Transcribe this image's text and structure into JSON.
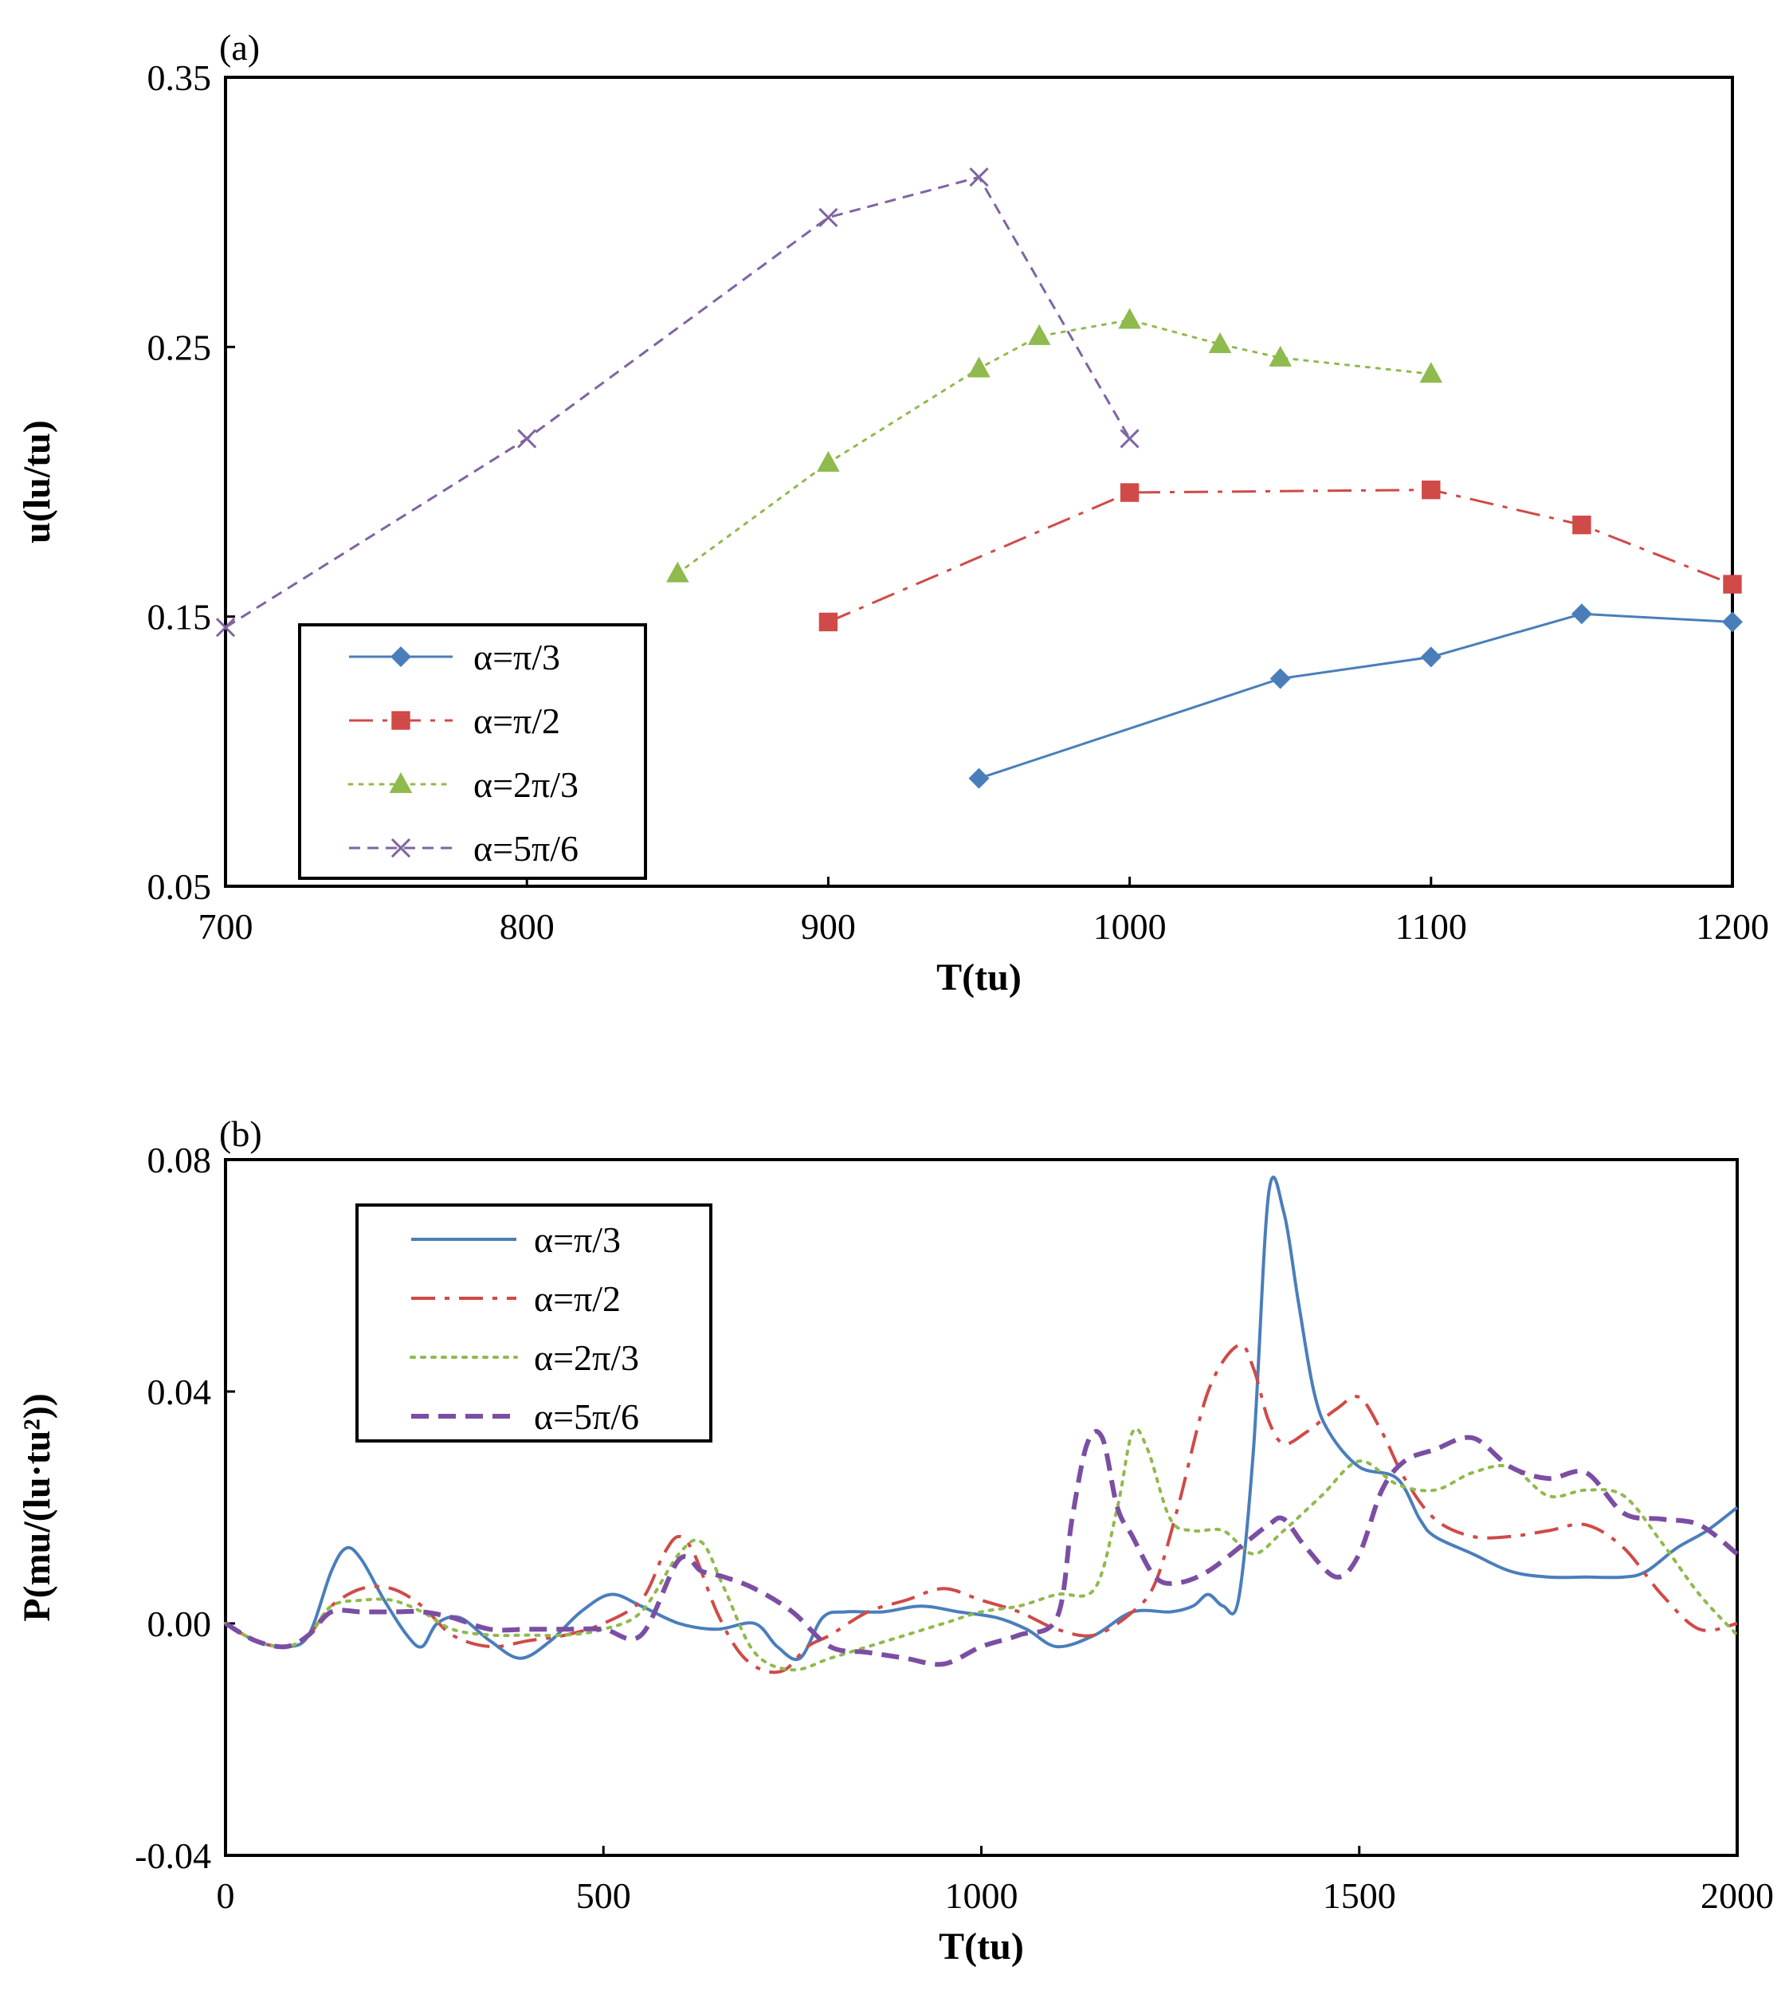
{
  "chart_data": [
    {
      "panel_label": "(a)",
      "type": "line",
      "xlabel": "T(tu)",
      "ylabel": "u(lu/tu)",
      "xlim": [
        700,
        1200
      ],
      "ylim": [
        0.05,
        0.35
      ],
      "xticks": [
        "700",
        "800",
        "900",
        "1000",
        "1100",
        "1200"
      ],
      "yticks": [
        "0.05",
        "0.15",
        "0.25",
        "0.35"
      ],
      "grid": false,
      "legend_position": "bottom-left",
      "series": [
        {
          "name": "α=π/3",
          "color": "#4a7ebb",
          "marker": "diamond",
          "dash": "solid",
          "x": [
            950,
            1050,
            1100,
            1150,
            1200
          ],
          "y": [
            0.09,
            0.127,
            0.135,
            0.151,
            0.148
          ]
        },
        {
          "name": "α=π/2",
          "color": "#d04a47",
          "marker": "square",
          "dash": "dashdot",
          "x": [
            900,
            1000,
            1100,
            1150,
            1200
          ],
          "y": [
            0.148,
            0.196,
            0.197,
            0.184,
            0.162
          ]
        },
        {
          "name": "α=2π/3",
          "color": "#8fba4d",
          "marker": "triangle",
          "dash": "dotted",
          "x": [
            850,
            900,
            950,
            970,
            1000,
            1030,
            1050,
            1100
          ],
          "y": [
            0.166,
            0.207,
            0.242,
            0.254,
            0.26,
            0.251,
            0.246,
            0.24
          ]
        },
        {
          "name": "α=5π/6",
          "color": "#8064a2",
          "marker": "x",
          "dash": "dashed",
          "x": [
            700,
            800,
            900,
            950,
            1000
          ],
          "y": [
            0.146,
            0.216,
            0.298,
            0.313,
            0.216
          ]
        }
      ]
    },
    {
      "panel_label": "(b)",
      "type": "line",
      "xlabel": "T(tu)",
      "ylabel": "P(mu/(lu·tu²))",
      "xlim": [
        0,
        2000
      ],
      "ylim": [
        -0.04,
        0.08
      ],
      "xticks": [
        "0",
        "500",
        "1000",
        "1500",
        "2000"
      ],
      "yticks": [
        "-0.04",
        "0.00",
        "0.04",
        "0.08"
      ],
      "grid": false,
      "legend_position": "top-left",
      "series": [
        {
          "name": "α=π/3",
          "color": "#4a7ebb",
          "dash": "solid",
          "x": [
            0,
            40,
            80,
            110,
            140,
            160,
            180,
            210,
            240,
            260,
            280,
            310,
            350,
            390,
            430,
            470,
            510,
            550,
            600,
            650,
            700,
            730,
            760,
            790,
            820,
            870,
            920,
            970,
            1020,
            1060,
            1100,
            1150,
            1200,
            1250,
            1280,
            1300,
            1320,
            1340,
            1360,
            1380,
            1400,
            1420,
            1440,
            1460,
            1500,
            1550,
            1580,
            1600,
            1650,
            1700,
            1750,
            1800,
            1850,
            1880,
            1920,
            1960,
            2000
          ],
          "y": [
            0.0,
            -0.003,
            -0.004,
            -0.002,
            0.009,
            0.013,
            0.011,
            0.004,
            -0.002,
            -0.004,
            0.0,
            0.001,
            -0.003,
            -0.006,
            -0.003,
            0.002,
            0.005,
            0.003,
            0.0,
            -0.001,
            0.0,
            -0.004,
            -0.006,
            0.001,
            0.002,
            0.002,
            0.003,
            0.002,
            0.001,
            -0.001,
            -0.004,
            -0.002,
            0.002,
            0.002,
            0.003,
            0.005,
            0.003,
            0.004,
            0.03,
            0.074,
            0.071,
            0.055,
            0.04,
            0.033,
            0.027,
            0.025,
            0.018,
            0.015,
            0.012,
            0.009,
            0.008,
            0.008,
            0.008,
            0.009,
            0.013,
            0.016,
            0.02
          ]
        },
        {
          "name": "α=π/2",
          "color": "#d04a47",
          "dash": "dashdot",
          "x": [
            0,
            40,
            80,
            110,
            140,
            180,
            220,
            260,
            300,
            350,
            400,
            450,
            500,
            550,
            580,
            600,
            620,
            650,
            680,
            710,
            740,
            770,
            800,
            850,
            900,
            950,
            1000,
            1050,
            1100,
            1150,
            1200,
            1230,
            1260,
            1300,
            1340,
            1360,
            1380,
            1400,
            1430,
            1470,
            1500,
            1530,
            1560,
            1600,
            1650,
            1700,
            1750,
            1800,
            1850,
            1900,
            1950,
            2000
          ],
          "y": [
            0.0,
            -0.003,
            -0.004,
            -0.002,
            0.003,
            0.006,
            0.006,
            0.003,
            -0.002,
            -0.004,
            -0.003,
            -0.002,
            0.0,
            0.004,
            0.012,
            0.015,
            0.012,
            0.002,
            -0.005,
            -0.008,
            -0.008,
            -0.004,
            -0.002,
            0.002,
            0.004,
            0.006,
            0.004,
            0.002,
            -0.001,
            -0.002,
            0.002,
            0.007,
            0.02,
            0.04,
            0.048,
            0.044,
            0.035,
            0.031,
            0.033,
            0.037,
            0.039,
            0.033,
            0.025,
            0.018,
            0.015,
            0.015,
            0.016,
            0.017,
            0.013,
            0.005,
            -0.001,
            0.0
          ]
        },
        {
          "name": "α=2π/3",
          "color": "#8fba4d",
          "dash": "dotted",
          "x": [
            0,
            40,
            80,
            110,
            140,
            180,
            220,
            260,
            300,
            350,
            400,
            450,
            500,
            550,
            600,
            630,
            660,
            700,
            750,
            800,
            850,
            900,
            950,
            1000,
            1050,
            1100,
            1150,
            1180,
            1200,
            1220,
            1250,
            1280,
            1320,
            1360,
            1400,
            1450,
            1500,
            1550,
            1600,
            1650,
            1700,
            1750,
            1800,
            1850,
            1900,
            1950,
            2000
          ],
          "y": [
            0.0,
            -0.003,
            -0.004,
            -0.002,
            0.003,
            0.004,
            0.004,
            0.002,
            -0.001,
            -0.002,
            -0.002,
            -0.002,
            -0.001,
            0.002,
            0.012,
            0.014,
            0.006,
            -0.005,
            -0.008,
            -0.006,
            -0.004,
            -0.002,
            0.0,
            0.002,
            0.003,
            0.005,
            0.006,
            0.02,
            0.033,
            0.03,
            0.018,
            0.016,
            0.016,
            0.012,
            0.016,
            0.022,
            0.028,
            0.024,
            0.023,
            0.026,
            0.027,
            0.022,
            0.023,
            0.022,
            0.014,
            0.005,
            -0.002
          ]
        },
        {
          "name": "α=5π/6",
          "color": "#7b4ea3",
          "dash": "longdash",
          "x": [
            0,
            40,
            80,
            110,
            140,
            180,
            220,
            260,
            300,
            350,
            400,
            450,
            500,
            550,
            600,
            630,
            660,
            700,
            750,
            800,
            850,
            900,
            950,
            1000,
            1050,
            1100,
            1120,
            1140,
            1160,
            1180,
            1200,
            1230,
            1260,
            1300,
            1350,
            1380,
            1400,
            1430,
            1470,
            1500,
            1530,
            1560,
            1600,
            1650,
            1700,
            1750,
            1800,
            1850,
            1900,
            1950,
            2000
          ],
          "y": [
            0.0,
            -0.003,
            -0.004,
            -0.002,
            0.002,
            0.002,
            0.002,
            0.002,
            0.001,
            -0.001,
            -0.001,
            -0.001,
            -0.001,
            -0.002,
            0.011,
            0.009,
            0.008,
            0.006,
            0.002,
            -0.004,
            -0.005,
            -0.006,
            -0.007,
            -0.004,
            -0.002,
            0.001,
            0.018,
            0.031,
            0.032,
            0.02,
            0.015,
            0.008,
            0.007,
            0.009,
            0.014,
            0.017,
            0.018,
            0.013,
            0.008,
            0.012,
            0.023,
            0.028,
            0.03,
            0.032,
            0.027,
            0.025,
            0.026,
            0.019,
            0.018,
            0.017,
            0.012
          ]
        }
      ]
    }
  ]
}
